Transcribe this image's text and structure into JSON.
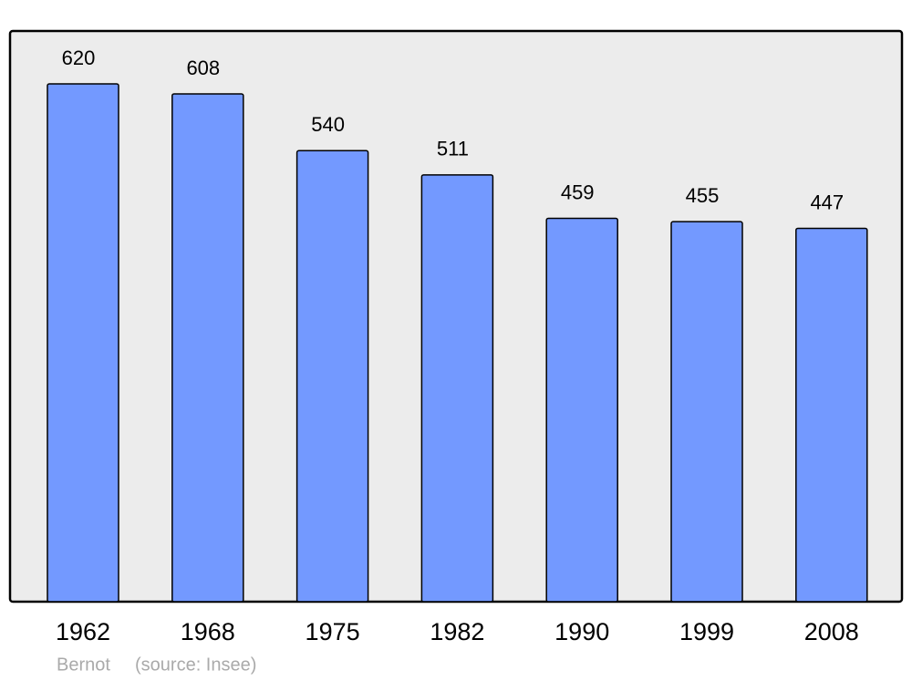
{
  "chart_data": {
    "type": "bar",
    "categories": [
      "1962",
      "1968",
      "1975",
      "1982",
      "1990",
      "1999",
      "2008"
    ],
    "values": [
      620,
      608,
      540,
      511,
      459,
      455,
      447
    ],
    "color": "#7399ff",
    "credit": "Bernot",
    "source": "(source: Insee)"
  }
}
